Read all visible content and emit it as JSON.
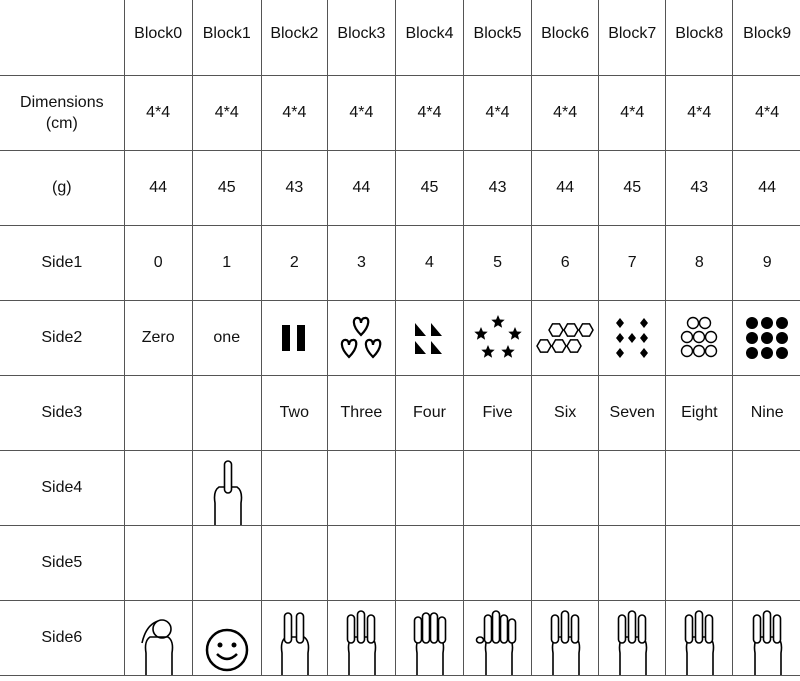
{
  "columns": [
    "Block0",
    "Block1",
    "Block2",
    "Block3",
    "Block4",
    "Block5",
    "Block6",
    "Block7",
    "Block8",
    "Block9"
  ],
  "rows": [
    {
      "label": "Dimensions\n(cm)",
      "cells": [
        "4*4",
        "4*4",
        "4*4",
        "4*4",
        "4*4",
        "4*4",
        "4*4",
        "4*4",
        "4*4",
        "4*4"
      ]
    },
    {
      "label": "(g)",
      "cells": [
        "44",
        "45",
        "43",
        "44",
        "45",
        "43",
        "44",
        "45",
        "43",
        "44"
      ]
    },
    {
      "label": "Side1",
      "cells": [
        "0",
        "1",
        "2",
        "3",
        "4",
        "5",
        "6",
        "7",
        "8",
        "9"
      ]
    },
    {
      "label": "Side2",
      "cells": [
        "Zero",
        "one",
        "",
        "",
        "",
        "",
        "",
        "",
        "",
        ""
      ],
      "icons": [
        "",
        "",
        "two-bars-icon",
        "three-hearts-icon",
        "four-triangles-icon",
        "five-stars-icon",
        "six-hexagons-icon",
        "seven-diamonds-icon",
        "eight-octagons-icon",
        "nine-dots-icon"
      ]
    },
    {
      "label": "Side3",
      "cells": [
        "",
        "",
        "Two",
        "Three",
        "Four",
        "Five",
        "Six",
        "Seven",
        "Eight",
        "Nine"
      ]
    },
    {
      "label": "Side4",
      "cells": [
        "",
        "",
        "",
        "",
        "",
        "",
        "",
        "",
        "",
        ""
      ],
      "icons": [
        "",
        "pointing-up-hand-icon",
        "",
        "",
        "",
        "",
        "",
        "",
        "",
        ""
      ]
    },
    {
      "label": "Side5",
      "cells": [
        "",
        "",
        "",
        "",
        "",
        "",
        "",
        "",
        "",
        ""
      ]
    },
    {
      "label": "Side6",
      "cells": [
        "",
        "",
        "",
        "",
        "",
        "",
        "",
        "",
        "",
        ""
      ],
      "icons": [
        "hand-zero-icon",
        "smiley-face-icon",
        "hand-two-icon",
        "hand-three-icon",
        "hand-four-icon",
        "hand-five-icon",
        "hand-six-icon",
        "hand-seven-icon",
        "hand-eight-icon",
        "hand-nine-icon"
      ]
    }
  ]
}
